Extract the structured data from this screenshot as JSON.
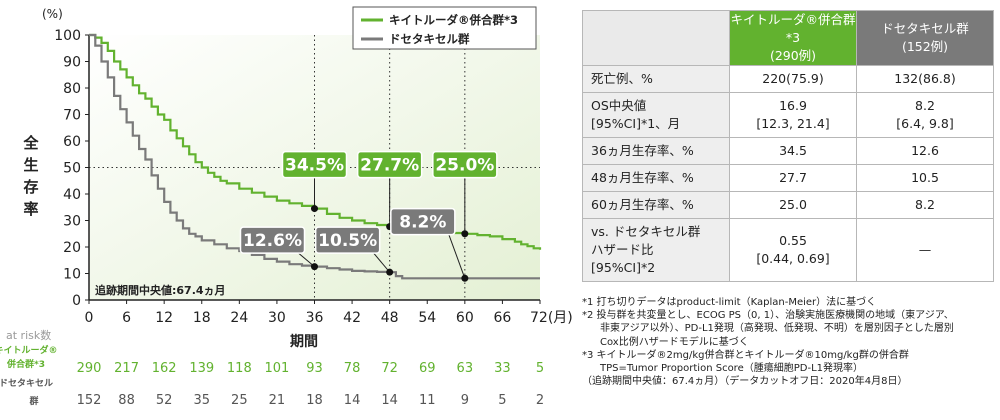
{
  "chart_data": {
    "type": "line",
    "y_unit": "(%)",
    "x_unit": "72(月)",
    "ylabel": "全生存率",
    "xlabel": "期間",
    "xlim": [
      0,
      72
    ],
    "ylim": [
      0,
      100
    ],
    "x_ticks": [
      0,
      6,
      12,
      18,
      24,
      30,
      36,
      42,
      48,
      54,
      60,
      66
    ],
    "y_ticks": [
      0,
      10,
      20,
      30,
      40,
      50,
      60,
      70,
      80,
      90,
      100
    ],
    "grid": "dotted guides at y=50 and x=36, 48, 60",
    "legend_position": "top-right",
    "series": [
      {
        "name": "キイトルーダ®併合群*3",
        "color": "#62b22f",
        "points": [
          [
            0,
            100
          ],
          [
            1,
            99
          ],
          [
            2,
            97
          ],
          [
            3,
            94
          ],
          [
            4,
            90
          ],
          [
            5,
            87
          ],
          [
            6,
            84
          ],
          [
            7,
            81
          ],
          [
            8,
            78
          ],
          [
            9,
            76
          ],
          [
            10,
            73
          ],
          [
            11,
            70
          ],
          [
            12,
            68
          ],
          [
            13,
            64
          ],
          [
            14,
            61
          ],
          [
            15,
            58
          ],
          [
            16,
            55
          ],
          [
            17,
            52
          ],
          [
            18,
            50
          ],
          [
            19,
            48
          ],
          [
            20,
            46.5
          ],
          [
            21,
            45
          ],
          [
            22,
            44
          ],
          [
            24,
            42
          ],
          [
            26,
            40.5
          ],
          [
            28,
            39
          ],
          [
            30,
            37.5
          ],
          [
            32,
            36.5
          ],
          [
            34,
            35.5
          ],
          [
            36,
            34.5
          ],
          [
            38,
            32.5
          ],
          [
            40,
            31
          ],
          [
            42,
            30
          ],
          [
            44,
            29
          ],
          [
            46,
            28.3
          ],
          [
            48,
            27.7
          ],
          [
            50,
            27
          ],
          [
            52,
            26.5
          ],
          [
            54,
            26
          ],
          [
            56,
            25.7
          ],
          [
            58,
            25.3
          ],
          [
            60,
            25.0
          ],
          [
            62,
            24.5
          ],
          [
            64,
            24
          ],
          [
            66,
            23
          ],
          [
            68,
            22
          ],
          [
            69,
            21
          ],
          [
            70,
            20.3
          ],
          [
            71,
            19.5
          ],
          [
            72,
            19
          ]
        ]
      },
      {
        "name": "ドセタキセル群",
        "color": "#7a7a7a",
        "points": [
          [
            0,
            100
          ],
          [
            1,
            96
          ],
          [
            2,
            90
          ],
          [
            3,
            84
          ],
          [
            4,
            77
          ],
          [
            5,
            72
          ],
          [
            6,
            67
          ],
          [
            7,
            62
          ],
          [
            8,
            57
          ],
          [
            9,
            53
          ],
          [
            10,
            47
          ],
          [
            11,
            42
          ],
          [
            12,
            37
          ],
          [
            13,
            33
          ],
          [
            14,
            30
          ],
          [
            15,
            27
          ],
          [
            16,
            25
          ],
          [
            17,
            24
          ],
          [
            18,
            22.5
          ],
          [
            20,
            21
          ],
          [
            22,
            19.5
          ],
          [
            24,
            18.5
          ],
          [
            26,
            17
          ],
          [
            28,
            15.5
          ],
          [
            30,
            14.5
          ],
          [
            32,
            13.5
          ],
          [
            34,
            13
          ],
          [
            36,
            12.6
          ],
          [
            38,
            12
          ],
          [
            40,
            11.5
          ],
          [
            42,
            11
          ],
          [
            44,
            10.8
          ],
          [
            46,
            10.6
          ],
          [
            48,
            10.5
          ],
          [
            49,
            9
          ],
          [
            50,
            8.2
          ],
          [
            60,
            8.2
          ],
          [
            72,
            8.2
          ]
        ]
      }
    ],
    "annotations": [
      {
        "series": 0,
        "x": 36,
        "y": 34.5,
        "label": "34.5%"
      },
      {
        "series": 0,
        "x": 48,
        "y": 27.7,
        "label": "27.7%"
      },
      {
        "series": 0,
        "x": 60,
        "y": 25.0,
        "label": "25.0%"
      },
      {
        "series": 1,
        "x": 36,
        "y": 12.6,
        "label": "12.6%"
      },
      {
        "series": 1,
        "x": 48,
        "y": 10.5,
        "label": "10.5%"
      },
      {
        "series": 1,
        "x": 60,
        "y": 8.2,
        "label": "8.2%"
      }
    ],
    "median_followup_note": "追跡期間中央値:67.4ヵ月",
    "at_risk": {
      "title": "at risk数",
      "rows": [
        {
          "label_line1": "キイトルーダ®",
          "label_line2": "併合群*3",
          "color": "#62b22f",
          "values": [
            "290",
            "217",
            "162",
            "139",
            "118",
            "101",
            "93",
            "78",
            "72",
            "69",
            "63",
            "33",
            "5"
          ]
        },
        {
          "label_line1": "ドセタキセル",
          "label_line2": "群",
          "color": "#555555",
          "values": [
            "152",
            "88",
            "52",
            "35",
            "25",
            "21",
            "18",
            "14",
            "14",
            "11",
            "9",
            "5",
            "2"
          ]
        }
      ]
    }
  },
  "table": {
    "headers": [
      {
        "line1": "キイトルーダ®併合群*3",
        "line2": "(290例)"
      },
      {
        "line1": "ドセタキセル群",
        "line2": "(152例)"
      }
    ],
    "rows": [
      {
        "label": [
          "死亡例、%"
        ],
        "keytruda": [
          "220(75.9)"
        ],
        "docetaxel": [
          "132(86.8)"
        ]
      },
      {
        "label": [
          "OS中央値",
          "[95%CI]*1、月"
        ],
        "keytruda": [
          "16.9",
          "[12.3, 21.4]"
        ],
        "docetaxel": [
          "8.2",
          "[6.4, 9.8]"
        ]
      },
      {
        "label": [
          "36ヵ月生存率、%"
        ],
        "keytruda": [
          "34.5"
        ],
        "docetaxel": [
          "12.6"
        ]
      },
      {
        "label": [
          "48ヵ月生存率、%"
        ],
        "keytruda": [
          "27.7"
        ],
        "docetaxel": [
          "10.5"
        ]
      },
      {
        "label": [
          "60ヵ月生存率、%"
        ],
        "keytruda": [
          "25.0"
        ],
        "docetaxel": [
          "8.2"
        ]
      },
      {
        "label": [
          "vs. ドセタキセル群",
          "ハザード比",
          "[95%CI]*2"
        ],
        "keytruda": [
          "0.55",
          "[0.44, 0.69]"
        ],
        "docetaxel": [
          "—"
        ]
      }
    ]
  },
  "footnotes": [
    "*1 打ち切りデータはproduct-limit（Kaplan-Meier）法に基づく",
    "*2 投与群を共変量とし、ECOG PS（0, 1）、治験実施医療機関の地域（東アジア、",
    "非東アジア以外）、PD-L1発現（高発現、低発現、不明）を層別因子とした層別",
    "Cox比例ハザードモデルに基づく",
    "*3 キイトルーダ®2mg/kg併合群とキイトルーダ®10mg/kg群の併合群",
    "TPS=Tumor Proportion Score（腫瘍細胞PD-L1発現率）",
    "（追跡期間中央値：67.4ヵ月）（データカットオフ日：2020年4月8日）"
  ]
}
